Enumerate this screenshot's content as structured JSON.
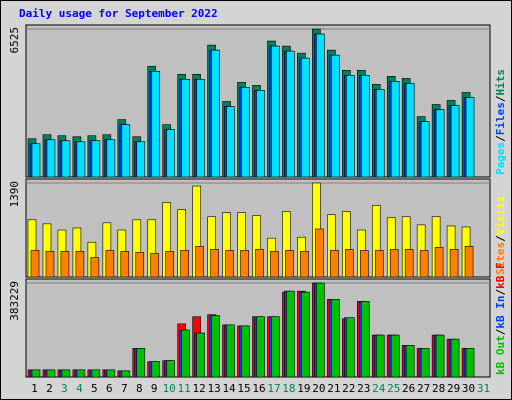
{
  "chart_data": [
    {
      "type": "bar",
      "title": "Daily usage for September 2022",
      "ylim": [
        0,
        6525
      ],
      "yticks": [
        6525
      ],
      "legend_separator": "/",
      "series": [
        {
          "name": "Hits",
          "color": "#00805c",
          "values": [
            1687,
            1864,
            1820,
            1775,
            1820,
            1864,
            2530,
            1775,
            4883,
            2308,
            4528,
            4528,
            5815,
            3329,
            4173,
            4039,
            5993,
            5771,
            5460,
            6525,
            5593,
            4705,
            4705,
            4084,
            4439,
            4350,
            2663,
            3196,
            3374,
            3729,
            null
          ]
        },
        {
          "name": "Files",
          "color": "#0040ff",
          "values": [
            1465,
            1642,
            1598,
            1553,
            1598,
            1642,
            2308,
            1553,
            4661,
            2086,
            4306,
            4306,
            5593,
            3107,
            3951,
            3817,
            5771,
            5549,
            5238,
            6303,
            5371,
            4483,
            4483,
            3862,
            4217,
            4128,
            2441,
            2974,
            3152,
            3507,
            null
          ]
        },
        {
          "name": "Pages",
          "color": "#00e0ff",
          "values": [
            1465,
            1642,
            1598,
            1553,
            1598,
            1642,
            2308,
            1553,
            4661,
            2086,
            4306,
            4306,
            5593,
            3107,
            3951,
            3817,
            5771,
            5549,
            5238,
            6303,
            5371,
            4483,
            4483,
            3862,
            4217,
            4128,
            2441,
            2974,
            3152,
            3507,
            null
          ]
        }
      ]
    },
    {
      "type": "bar",
      "ylim": [
        0,
        1390
      ],
      "yticks": [
        1390
      ],
      "legend_separator": "/",
      "series": [
        {
          "name": "Visits",
          "color": "#ffff00",
          "values": [
            846,
            786,
            695,
            725,
            514,
            801,
            695,
            846,
            846,
            1103,
            997,
            1345,
            891,
            952,
            952,
            907,
            574,
            967,
            589,
            1390,
            922,
            967,
            695,
            1058,
            876,
            891,
            771,
            891,
            755,
            740,
            null
          ]
        },
        {
          "name": "Sites",
          "color": "#ff8000",
          "values": [
            393,
            378,
            378,
            378,
            287,
            393,
            378,
            363,
            347,
            378,
            393,
            453,
            408,
            393,
            393,
            408,
            378,
            393,
            378,
            710,
            393,
            408,
            393,
            393,
            408,
            408,
            393,
            438,
            408,
            453,
            null
          ]
        }
      ]
    },
    {
      "type": "bar",
      "ylim": [
        0,
        383229
      ],
      "yticks": [
        383229
      ],
      "legend_separator": "/",
      "categories": [
        "1",
        "2",
        "3",
        "4",
        "5",
        "6",
        "7",
        "8",
        "9",
        "10",
        "11",
        "12",
        "13",
        "14",
        "15",
        "16",
        "17",
        "18",
        "19",
        "20",
        "21",
        "22",
        "23",
        "24",
        "25",
        "26",
        "27",
        "28",
        "29",
        "30",
        "31"
      ],
      "category_colors": [
        "#000000",
        "#000000",
        "#00805c",
        "#00805c",
        "#000000",
        "#000000",
        "#000000",
        "#000000",
        "#000000",
        "#00805c",
        "#00805c",
        "#000000",
        "#000000",
        "#000000",
        "#000000",
        "#000000",
        "#00805c",
        "#00805c",
        "#000000",
        "#000000",
        "#000000",
        "#000000",
        "#000000",
        "#00805c",
        "#00805c",
        "#000000",
        "#000000",
        "#000000",
        "#000000",
        "#000000",
        "#00805c"
      ],
      "series": [
        {
          "name": "kB F",
          "color": "#ff0000",
          "values": [
            29158,
            29158,
            29158,
            29158,
            29158,
            29158,
            24993,
            116635,
            62483,
            66648,
            216607,
            245766,
            254097,
            212441,
            208275,
            245766,
            245766,
            345741,
            349906,
            383229,
            316579,
            237435,
            308247,
            170787,
            170787,
            129132,
            116635,
            170787,
            154125,
            116635,
            null
          ]
        },
        {
          "name": "kB In",
          "color": "#0040ff",
          "values": [
            29158,
            29158,
            29158,
            29158,
            29158,
            29158,
            24993,
            116635,
            62483,
            66648,
            191615,
            179118,
            249931,
            212441,
            208275,
            245766,
            245766,
            349906,
            345741,
            383229,
            316579,
            241600,
            308247,
            170787,
            170787,
            129132,
            116635,
            170787,
            154125,
            116635,
            null
          ]
        },
        {
          "name": "kB Out",
          "color": "#00c000",
          "values": [
            29158,
            29158,
            29158,
            29158,
            29158,
            29158,
            24993,
            116635,
            62483,
            66648,
            191615,
            179118,
            249931,
            212441,
            208275,
            245766,
            245766,
            349906,
            345741,
            383229,
            316579,
            241600,
            308247,
            170787,
            170787,
            129132,
            116635,
            170787,
            154125,
            116635,
            null
          ]
        }
      ]
    }
  ]
}
